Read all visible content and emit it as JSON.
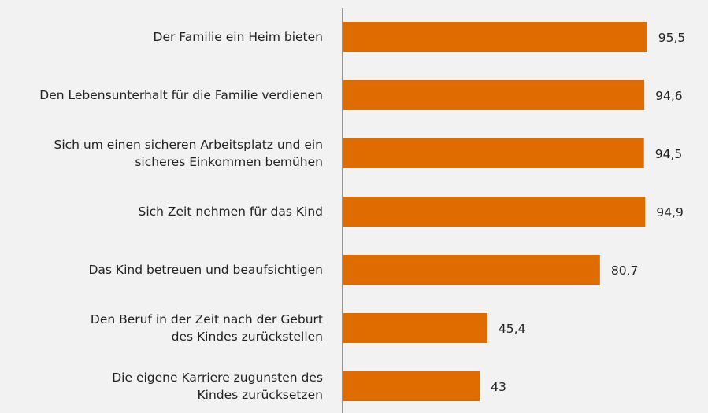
{
  "chart_data": {
    "type": "bar",
    "orientation": "horizontal",
    "categories": [
      "Der Familie ein Heim bieten",
      "Den Lebensunterhalt für die Familie verdienen",
      "Sich um einen sicheren Arbeitsplatz und ein\nsicheres Einkommen bemühen",
      "Sich Zeit nehmen für das Kind",
      "Das Kind betreuen und beaufsichtigen",
      "Den Beruf in der Zeit nach der Geburt\ndes Kindes zurückstellen",
      "Die eigene Karriere zugunsten des\nKindes zurücksetzen"
    ],
    "values": [
      95.5,
      94.6,
      94.5,
      94.9,
      80.7,
      45.4,
      43
    ],
    "value_labels": [
      "95,5",
      "94,6",
      "94,5",
      "94,9",
      "80,7",
      "45,4",
      "43"
    ],
    "color": "#e06c00",
    "xlim": [
      0,
      100
    ]
  }
}
